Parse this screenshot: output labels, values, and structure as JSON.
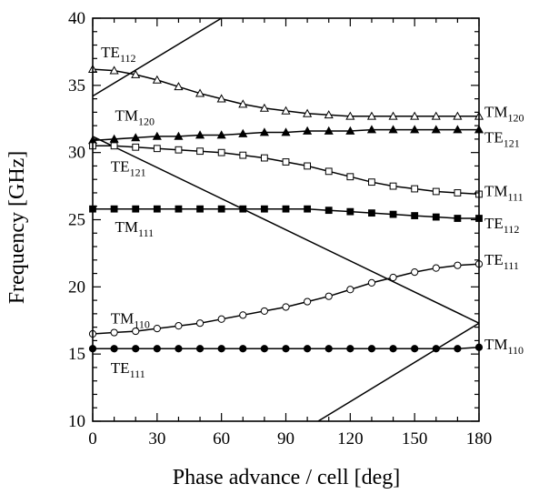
{
  "chart_data": {
    "type": "line",
    "title": "",
    "xlabel": "Phase advance / cell  [deg]",
    "ylabel": "Frequency  [GHz]",
    "xlim": [
      0,
      180
    ],
    "ylim": [
      10,
      40
    ],
    "x_ticks": [
      0,
      30,
      60,
      90,
      120,
      150,
      180
    ],
    "y_ticks": [
      10,
      15,
      20,
      25,
      30,
      35,
      40
    ],
    "grid": false,
    "light_lines": [
      {
        "x": [
          0,
          60
        ],
        "y": [
          34.2,
          40
        ]
      },
      {
        "x": [
          0,
          180
        ],
        "y": [
          31.2,
          17.3
        ]
      },
      {
        "x": [
          105,
          180
        ],
        "y": [
          10,
          17.3
        ]
      }
    ],
    "series": [
      {
        "marker": "triangle-open",
        "x": [
          0,
          10,
          20,
          30,
          40,
          50,
          60,
          70,
          80,
          90,
          100,
          110,
          120,
          130,
          140,
          150,
          160,
          170,
          180
        ],
        "y": [
          36.2,
          36.1,
          35.8,
          35.4,
          34.9,
          34.4,
          34.0,
          33.6,
          33.3,
          33.1,
          32.9,
          32.8,
          32.7,
          32.7,
          32.7,
          32.7,
          32.7,
          32.7,
          32.7
        ]
      },
      {
        "marker": "triangle-filled",
        "x": [
          0,
          10,
          20,
          30,
          40,
          50,
          60,
          70,
          80,
          90,
          100,
          110,
          120,
          130,
          140,
          150,
          160,
          170,
          180
        ],
        "y": [
          30.9,
          31.0,
          31.1,
          31.2,
          31.2,
          31.3,
          31.3,
          31.4,
          31.5,
          31.5,
          31.6,
          31.6,
          31.6,
          31.7,
          31.7,
          31.7,
          31.7,
          31.7,
          31.7
        ]
      },
      {
        "marker": "square-open",
        "x": [
          0,
          10,
          20,
          30,
          40,
          50,
          60,
          70,
          80,
          90,
          100,
          110,
          120,
          130,
          140,
          150,
          160,
          170,
          180
        ],
        "y": [
          30.5,
          30.5,
          30.4,
          30.3,
          30.2,
          30.1,
          30.0,
          29.8,
          29.6,
          29.3,
          29.0,
          28.6,
          28.2,
          27.8,
          27.5,
          27.3,
          27.1,
          27.0,
          26.9
        ]
      },
      {
        "marker": "square-filled",
        "x": [
          0,
          10,
          20,
          30,
          40,
          50,
          60,
          70,
          80,
          90,
          100,
          110,
          120,
          130,
          140,
          150,
          160,
          170,
          180
        ],
        "y": [
          25.8,
          25.8,
          25.8,
          25.8,
          25.8,
          25.8,
          25.8,
          25.8,
          25.8,
          25.8,
          25.8,
          25.7,
          25.6,
          25.5,
          25.4,
          25.3,
          25.2,
          25.1,
          25.1
        ]
      },
      {
        "marker": "circle-open",
        "x": [
          0,
          10,
          20,
          30,
          40,
          50,
          60,
          70,
          80,
          90,
          100,
          110,
          120,
          130,
          140,
          150,
          160,
          170,
          180
        ],
        "y": [
          16.5,
          16.6,
          16.7,
          16.9,
          17.1,
          17.3,
          17.6,
          17.9,
          18.2,
          18.5,
          18.9,
          19.3,
          19.8,
          20.3,
          20.7,
          21.1,
          21.4,
          21.6,
          21.7
        ]
      },
      {
        "marker": "circle-filled",
        "x": [
          0,
          10,
          20,
          30,
          40,
          50,
          60,
          70,
          80,
          90,
          100,
          110,
          120,
          130,
          140,
          150,
          160,
          170,
          180
        ],
        "y": [
          15.4,
          15.4,
          15.4,
          15.4,
          15.4,
          15.4,
          15.4,
          15.4,
          15.4,
          15.4,
          15.4,
          15.4,
          15.4,
          15.4,
          15.4,
          15.4,
          15.4,
          15.4,
          15.5
        ]
      }
    ],
    "annotations_left": [
      {
        "main": "TE",
        "sub": "112",
        "x": 0.5,
        "y": 37.5
      },
      {
        "main": "TM",
        "sub": "120",
        "x": 7,
        "y": 32.8
      },
      {
        "main": "TE",
        "sub": "121",
        "x": 5,
        "y": 29.0
      },
      {
        "main": "TM",
        "sub": "111",
        "x": 7,
        "y": 24.5
      },
      {
        "main": "TM",
        "sub": "110",
        "x": 5,
        "y": 17.7
      },
      {
        "main": "TE",
        "sub": "111",
        "x": 5,
        "y": 14.0
      }
    ],
    "annotations_right": [
      {
        "main": "TM",
        "sub": "120",
        "y": 33.0
      },
      {
        "main": "TE",
        "sub": "121",
        "y": 31.1
      },
      {
        "main": "TM",
        "sub": "111",
        "y": 27.1
      },
      {
        "main": "TE",
        "sub": "112",
        "y": 24.7
      },
      {
        "main": "TE",
        "sub": "111",
        "y": 22.0
      },
      {
        "main": "TM",
        "sub": "110",
        "y": 15.7
      }
    ]
  }
}
